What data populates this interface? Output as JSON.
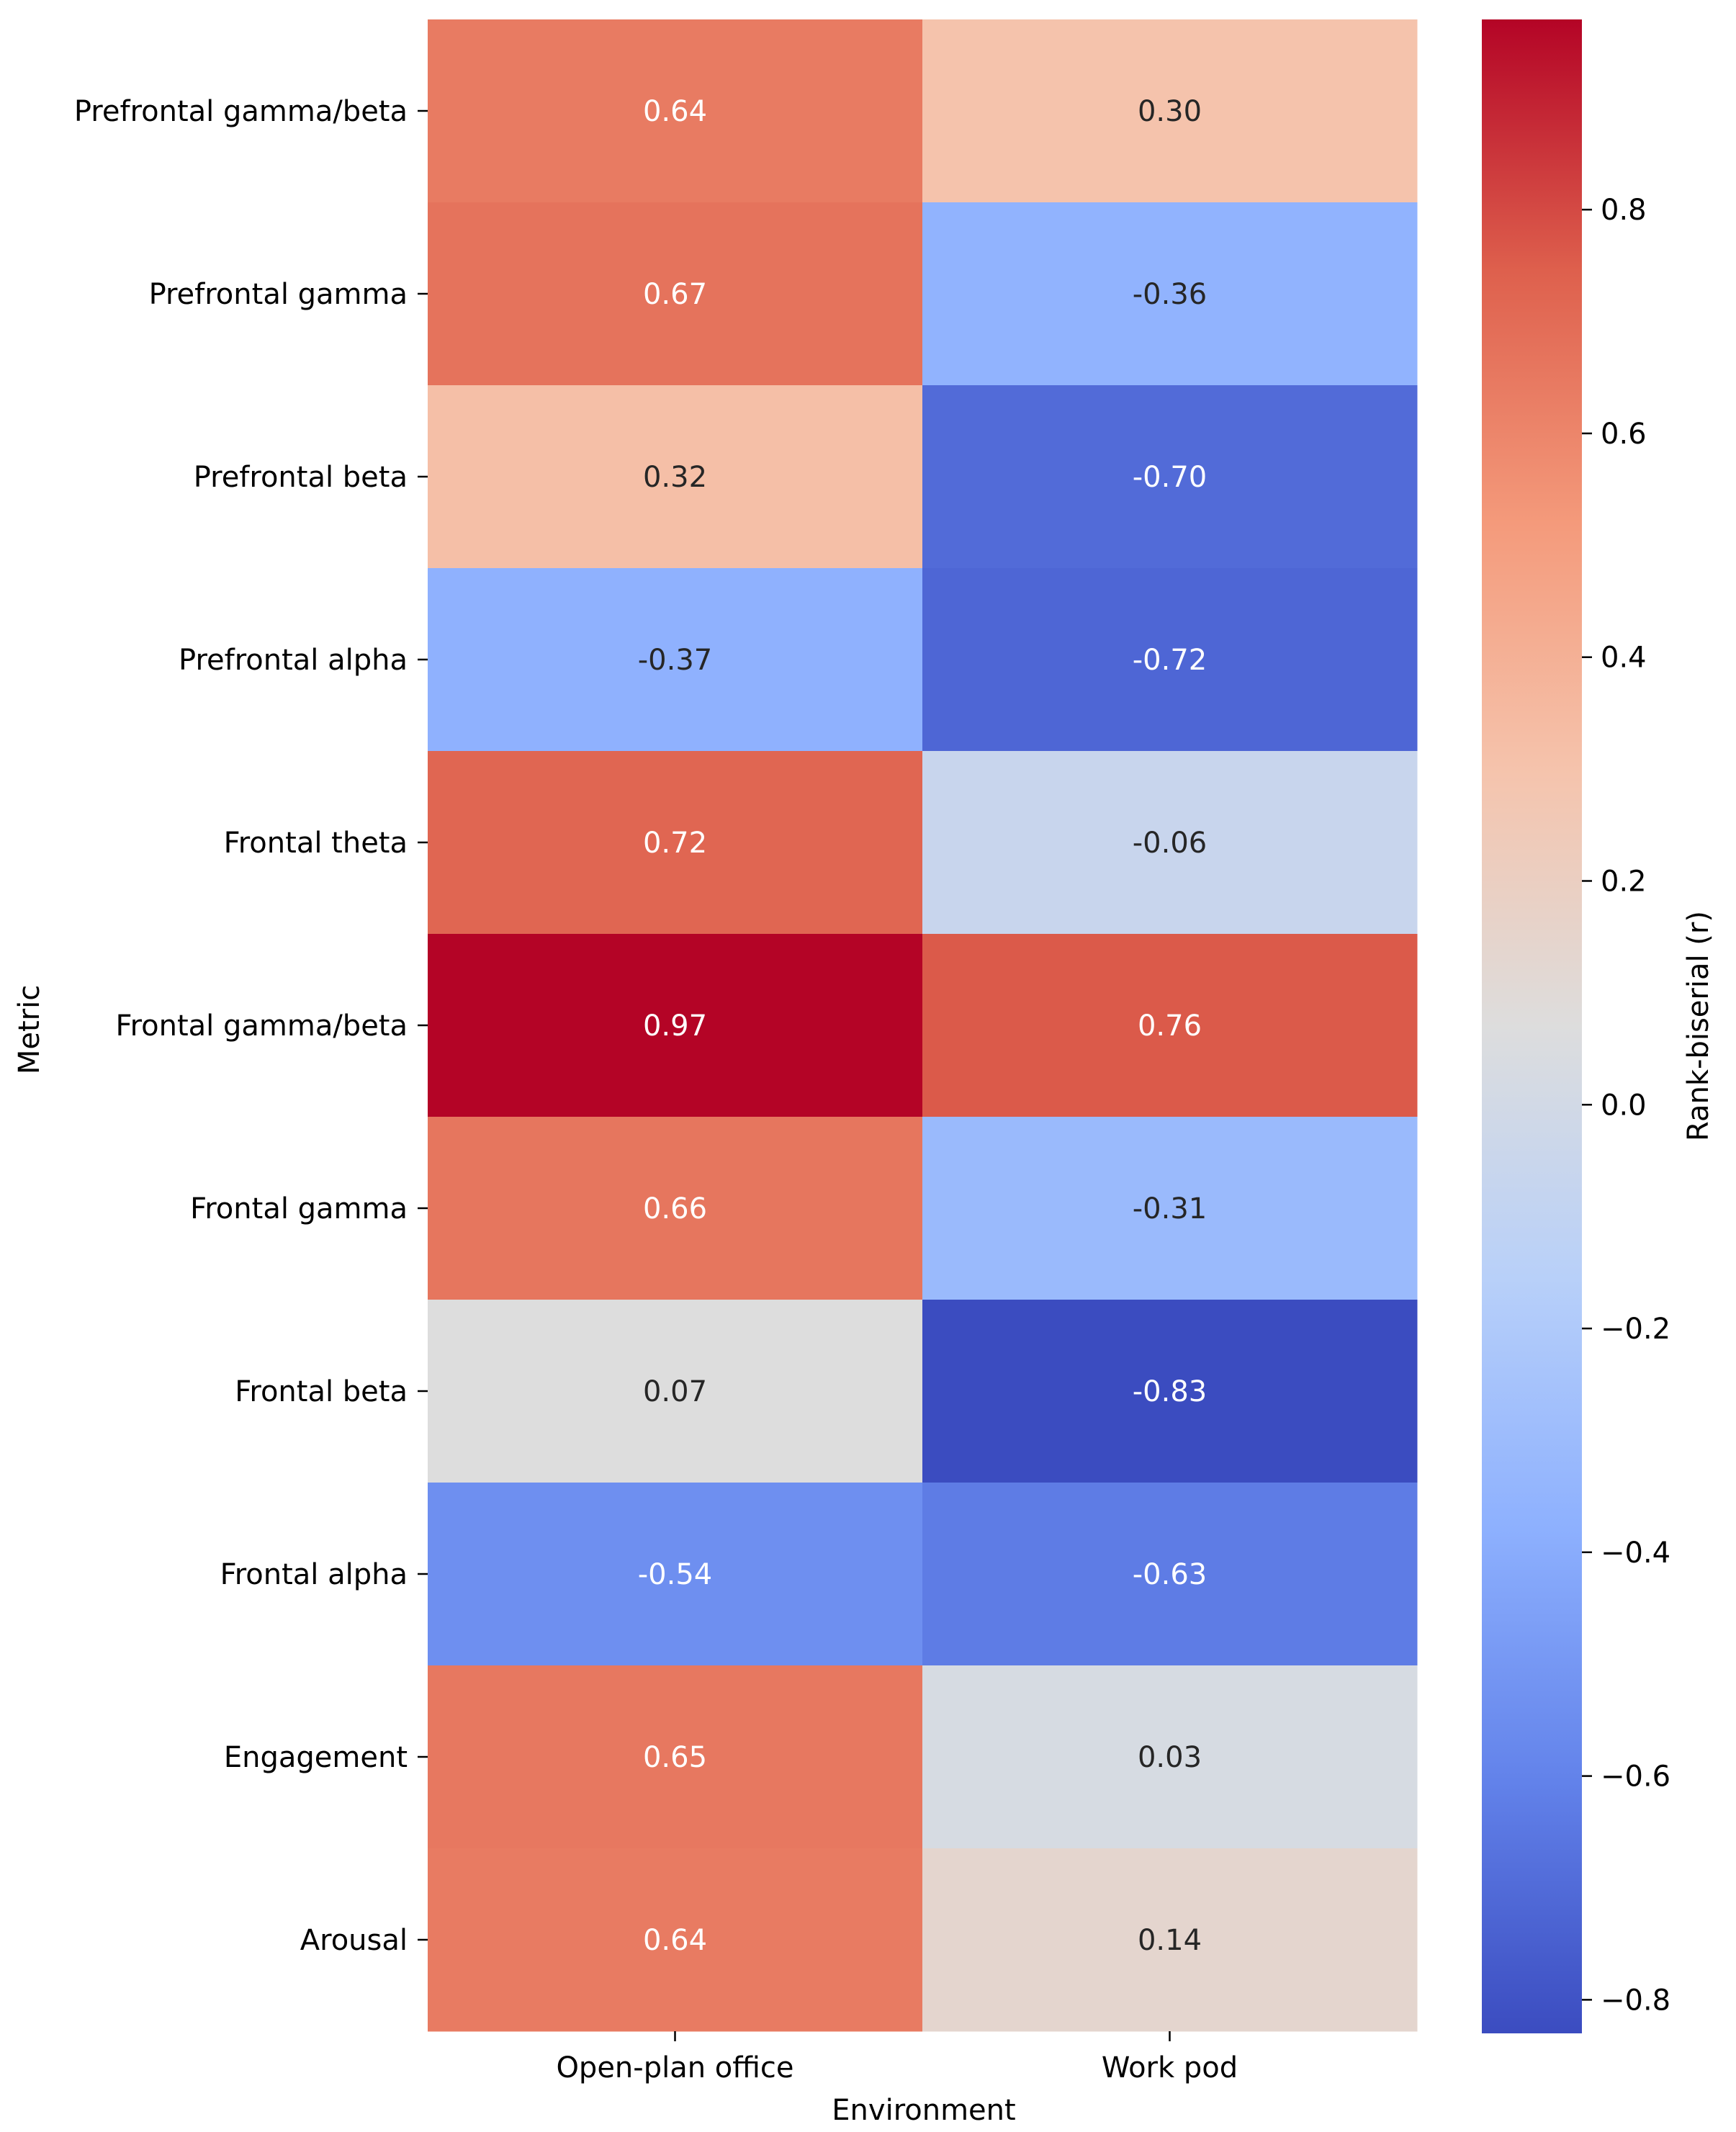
{
  "chart_data": {
    "type": "heatmap",
    "title": "",
    "xlabel": "Environment",
    "ylabel": "Metric",
    "x_categories": [
      "Open-plan office",
      "Work pod"
    ],
    "y_categories": [
      "Prefrontal gamma/beta",
      "Prefrontal gamma",
      "Prefrontal beta",
      "Prefrontal alpha",
      "Frontal theta",
      "Frontal gamma/beta",
      "Frontal gamma",
      "Frontal beta",
      "Frontal alpha",
      "Engagement",
      "Arousal"
    ],
    "values": [
      [
        0.64,
        0.3
      ],
      [
        0.67,
        -0.36
      ],
      [
        0.32,
        -0.7
      ],
      [
        -0.37,
        -0.72
      ],
      [
        0.72,
        -0.06
      ],
      [
        0.97,
        0.76
      ],
      [
        0.66,
        -0.31
      ],
      [
        0.07,
        -0.83
      ],
      [
        -0.54,
        -0.63
      ],
      [
        0.65,
        0.03
      ],
      [
        0.64,
        0.14
      ]
    ],
    "value_labels": [
      [
        "0.64",
        "0.30"
      ],
      [
        "0.67",
        "-0.36"
      ],
      [
        "0.32",
        "-0.70"
      ],
      [
        "-0.37",
        "-0.72"
      ],
      [
        "0.72",
        "-0.06"
      ],
      [
        "0.97",
        "0.76"
      ],
      [
        "0.66",
        "-0.31"
      ],
      [
        "0.07",
        "-0.83"
      ],
      [
        "-0.54",
        "-0.63"
      ],
      [
        "0.65",
        "0.03"
      ],
      [
        "0.64",
        "0.14"
      ]
    ],
    "colormap": "coolwarm",
    "color_range": [
      -0.83,
      0.97
    ],
    "colorbar": {
      "label": "Rank-biserial (r)",
      "ticks": [
        0.8,
        0.6,
        0.4,
        0.2,
        0.0,
        -0.2,
        -0.4,
        -0.6,
        -0.8
      ],
      "tick_labels": [
        "0.8",
        "0.6",
        "0.4",
        "0.2",
        "0.0",
        "−0.2",
        "−0.4",
        "−0.6",
        "−0.8"
      ]
    }
  }
}
